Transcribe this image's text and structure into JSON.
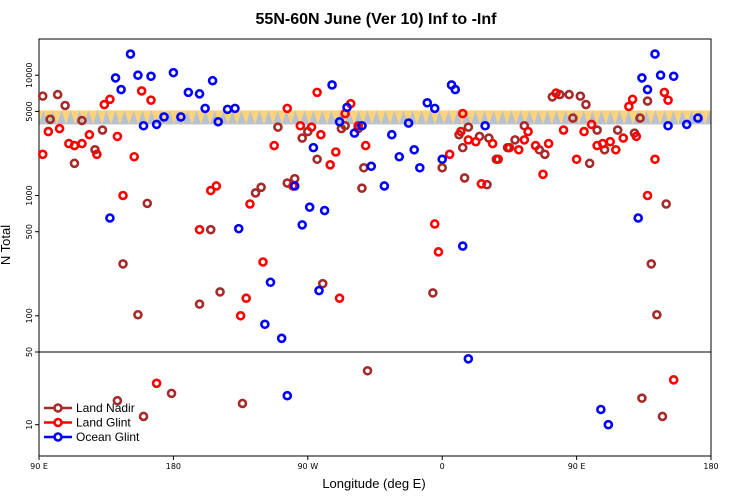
{
  "chart_data": {
    "type": "scatter",
    "title": "55N-60N June (Ver 10)   Inf to -Inf",
    "xlabel": "Longitude (deg E)",
    "ylabel": "N Total",
    "xlim": [
      90,
      450
    ],
    "x_ticks": [
      {
        "value": 90,
        "label": "90 E"
      },
      {
        "value": 162,
        "label": "180"
      },
      {
        "value": 234,
        "label": "90 W"
      },
      {
        "value": 306,
        "label": "0"
      },
      {
        "value": 378,
        "label": "90 E"
      },
      {
        "value": 450,
        "label": "180"
      }
    ],
    "upper_panel": {
      "scale": "log",
      "ylim": [
        50,
        20000
      ],
      "y_ticks": [
        {
          "value": 100,
          "label": "100"
        },
        {
          "value": 500,
          "label": "500"
        },
        {
          "value": 1000,
          "label": "1000"
        },
        {
          "value": 5000,
          "label": "5000"
        },
        {
          "value": 10000,
          "label": "10000"
        }
      ]
    },
    "lower_panel": {
      "scale": "log",
      "ylim": [
        5,
        50
      ],
      "y_ticks": [
        {
          "value": 10,
          "label": "10"
        },
        {
          "value": 50,
          "label": "50"
        }
      ]
    },
    "band": {
      "ylim": [
        3900,
        5100
      ],
      "colors": [
        "#ffd37a",
        "#a9bde0"
      ],
      "note": "dense reference band of orbit points"
    },
    "legend": {
      "position": "bottom-left"
    },
    "series": [
      {
        "name": "Land Nadir",
        "color": "#a52a2a",
        "points": [
          [
            92,
            6700
          ],
          [
            96,
            4300
          ],
          [
            100,
            6900
          ],
          [
            104,
            5600
          ],
          [
            109,
            1850
          ],
          [
            113,
            4200
          ],
          [
            120,
            2400
          ],
          [
            124,
            3500
          ],
          [
            132,
            17
          ],
          [
            135,
            270
          ],
          [
            143,
            102
          ],
          [
            146,
            12
          ],
          [
            148,
            860
          ],
          [
            161,
            20
          ],
          [
            176,
            125
          ],
          [
            182,
            520
          ],
          [
            187,
            158
          ],
          [
            199,
            16
          ],
          [
            206,
            1050
          ],
          [
            209,
            1170
          ],
          [
            218,
            3700
          ],
          [
            223,
            1270
          ],
          [
            227,
            1380
          ],
          [
            231,
            3000
          ],
          [
            234,
            3400
          ],
          [
            239,
            2000
          ],
          [
            242,
            185
          ],
          [
            252,
            3600
          ],
          [
            254,
            3800
          ],
          [
            261,
            3600
          ],
          [
            263,
            1150
          ],
          [
            264,
            1700
          ],
          [
            266,
            33
          ],
          [
            301,
            155
          ],
          [
            306,
            1700
          ],
          [
            315,
            3200
          ],
          [
            317,
            2500
          ],
          [
            318,
            1400
          ],
          [
            320,
            3700
          ],
          [
            326,
            3100
          ],
          [
            330,
            1230
          ],
          [
            331,
            3000
          ],
          [
            335,
            2000
          ],
          [
            341,
            2500
          ],
          [
            345,
            2900
          ],
          [
            350,
            3800
          ],
          [
            358,
            2400
          ],
          [
            361,
            2200
          ],
          [
            365,
            6600
          ],
          [
            369,
            6900
          ],
          [
            374,
            6900
          ],
          [
            376,
            4400
          ],
          [
            380,
            6700
          ],
          [
            383,
            5700
          ],
          [
            385,
            1850
          ],
          [
            389,
            3500
          ],
          [
            393,
            2400
          ],
          [
            400,
            3500
          ],
          [
            409,
            3300
          ],
          [
            412,
            4400
          ],
          [
            413,
            18
          ],
          [
            416,
            6100
          ],
          [
            418,
            270
          ],
          [
            421,
            102
          ],
          [
            424,
            12
          ],
          [
            426,
            850
          ]
        ]
      },
      {
        "name": "Land Glint",
        "color": "#ff0000",
        "points": [
          [
            92,
            2200
          ],
          [
            95,
            3400
          ],
          [
            101,
            3600
          ],
          [
            106,
            2700
          ],
          [
            109,
            2600
          ],
          [
            113,
            2700
          ],
          [
            117,
            3200
          ],
          [
            121,
            2200
          ],
          [
            125,
            5700
          ],
          [
            128,
            6300
          ],
          [
            132,
            3100
          ],
          [
            135,
            1000
          ],
          [
            141,
            2100
          ],
          [
            145,
            7400
          ],
          [
            150,
            6200
          ],
          [
            153,
            25
          ],
          [
            176,
            520
          ],
          [
            182,
            1100
          ],
          [
            185,
            1200
          ],
          [
            198,
            100
          ],
          [
            201,
            140
          ],
          [
            203,
            850
          ],
          [
            210,
            280
          ],
          [
            216,
            2600
          ],
          [
            223,
            5300
          ],
          [
            226,
            1200
          ],
          [
            230,
            3800
          ],
          [
            236,
            3700
          ],
          [
            239,
            7200
          ],
          [
            241,
            3200
          ],
          [
            246,
            1800
          ],
          [
            249,
            2300
          ],
          [
            251,
            140
          ],
          [
            254,
            4800
          ],
          [
            257,
            5800
          ],
          [
            261,
            3800
          ],
          [
            265,
            2600
          ],
          [
            302,
            580
          ],
          [
            304,
            340
          ],
          [
            310,
            2200
          ],
          [
            316,
            3400
          ],
          [
            317,
            4800
          ],
          [
            320,
            2900
          ],
          [
            324,
            2800
          ],
          [
            327,
            1250
          ],
          [
            333,
            2700
          ],
          [
            336,
            2000
          ],
          [
            342,
            2500
          ],
          [
            347,
            2400
          ],
          [
            350,
            2900
          ],
          [
            352,
            3400
          ],
          [
            356,
            2600
          ],
          [
            360,
            1500
          ],
          [
            363,
            2700
          ],
          [
            367,
            7100
          ],
          [
            371,
            3500
          ],
          [
            378,
            2000
          ],
          [
            382,
            3400
          ],
          [
            386,
            3900
          ],
          [
            389,
            2600
          ],
          [
            392,
            2700
          ],
          [
            396,
            2800
          ],
          [
            399,
            2400
          ],
          [
            403,
            3000
          ],
          [
            406,
            5500
          ],
          [
            408,
            6300
          ],
          [
            410,
            3100
          ],
          [
            416,
            1000
          ],
          [
            420,
            2000
          ],
          [
            425,
            7200
          ],
          [
            427,
            6200
          ],
          [
            430,
            27
          ]
        ]
      },
      {
        "name": "Ocean Glint",
        "color": "#0000ff",
        "points": [
          [
            128,
            650
          ],
          [
            131,
            9500
          ],
          [
            134,
            7600
          ],
          [
            139,
            15000
          ],
          [
            143,
            10000
          ],
          [
            146,
            3800
          ],
          [
            150,
            9800
          ],
          [
            153,
            3900
          ],
          [
            157,
            4500
          ],
          [
            162,
            10500
          ],
          [
            166,
            4500
          ],
          [
            170,
            7200
          ],
          [
            176,
            7000
          ],
          [
            179,
            5300
          ],
          [
            183,
            9000
          ],
          [
            186,
            4100
          ],
          [
            191,
            5200
          ],
          [
            195,
            5300
          ],
          [
            197,
            530
          ],
          [
            211,
            85
          ],
          [
            214,
            190
          ],
          [
            220,
            65
          ],
          [
            223,
            19
          ],
          [
            227,
            1200
          ],
          [
            231,
            570
          ],
          [
            235,
            800
          ],
          [
            237,
            2500
          ],
          [
            240,
            162
          ],
          [
            243,
            750
          ],
          [
            247,
            8300
          ],
          [
            251,
            4100
          ],
          [
            255,
            5400
          ],
          [
            259,
            3300
          ],
          [
            263,
            3800
          ],
          [
            268,
            1750
          ],
          [
            275,
            1200
          ],
          [
            279,
            3200
          ],
          [
            283,
            2100
          ],
          [
            288,
            4000
          ],
          [
            291,
            2400
          ],
          [
            294,
            1700
          ],
          [
            298,
            5900
          ],
          [
            302,
            5300
          ],
          [
            306,
            2000
          ],
          [
            311,
            8300
          ],
          [
            313,
            7600
          ],
          [
            317,
            380
          ],
          [
            320,
            43
          ],
          [
            329,
            3800
          ],
          [
            391,
            14
          ],
          [
            395,
            10
          ],
          [
            411,
            650
          ],
          [
            413,
            9500
          ],
          [
            416,
            7600
          ],
          [
            420,
            15000
          ],
          [
            423,
            10000
          ],
          [
            427,
            3800
          ],
          [
            430,
            9800
          ],
          [
            437,
            3900
          ],
          [
            443,
            4400
          ]
        ]
      }
    ]
  }
}
